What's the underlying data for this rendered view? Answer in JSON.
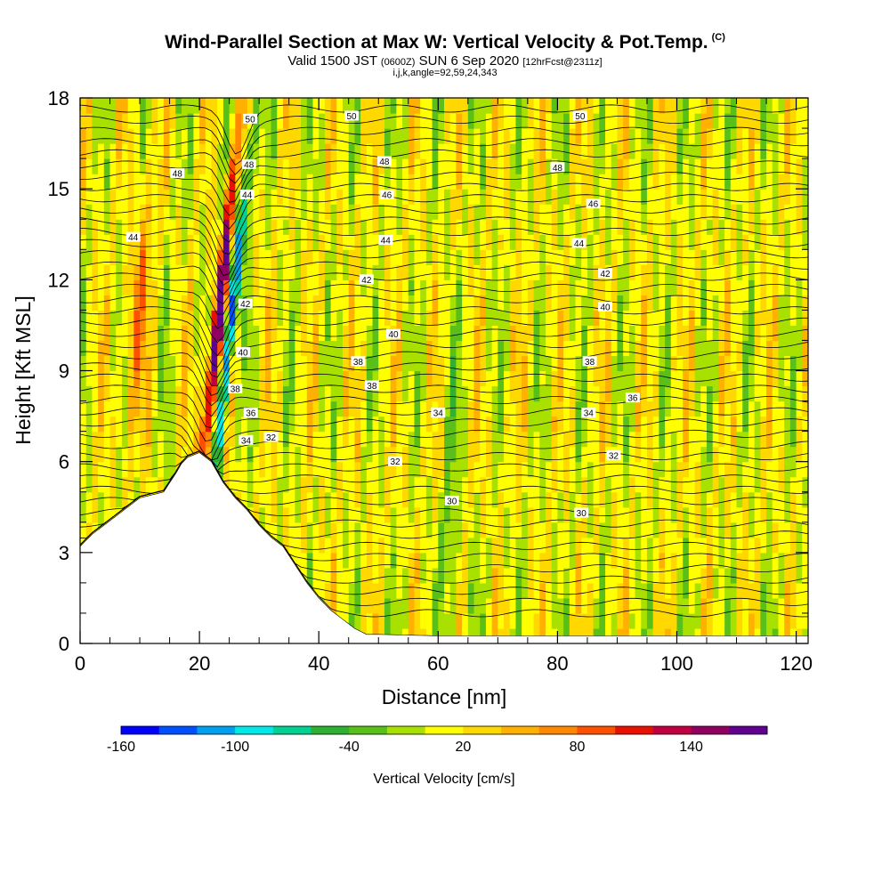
{
  "header": {
    "title": "Wind-Parallel Section at Max W: Vertical Velocity & Pot.Temp.",
    "copyright": "(C)",
    "valid_main": "Valid 1500 JST",
    "valid_utc": "(0600Z)",
    "valid_date": "SUN 6 Sep 2020",
    "forecast": "[12hrFcst@2311z]",
    "params": "i,j,k,angle=92,59,24,343"
  },
  "chart_data": {
    "type": "heatmap",
    "xlabel": "Distance [nm]",
    "ylabel": "Height [Kft MSL]",
    "xlim": [
      0,
      122
    ],
    "ylim": [
      0,
      18
    ],
    "x_ticks": [
      0,
      20,
      40,
      60,
      80,
      100,
      120
    ],
    "y_ticks": [
      0,
      3,
      6,
      9,
      12,
      15,
      18
    ],
    "colorbar": {
      "label": "Vertical Velocity [cm/s]",
      "tick_labels": [
        "-160",
        "-100",
        "-40",
        "20",
        "80",
        "140"
      ],
      "tick_values": [
        -160,
        -100,
        -40,
        20,
        80,
        140
      ],
      "range": [
        -160,
        180
      ],
      "colors": [
        "#0000ff",
        "#0050ff",
        "#00a0f0",
        "#00e8e8",
        "#00d090",
        "#30b030",
        "#58c018",
        "#a8e000",
        "#ffff00",
        "#ffd800",
        "#ffb000",
        "#ff8800",
        "#ff5000",
        "#e81000",
        "#c00040",
        "#900060",
        "#600090"
      ]
    },
    "theta_contour_labels": [
      {
        "x": 28.5,
        "y": 17.3,
        "value": "50"
      },
      {
        "x": 45.5,
        "y": 17.4,
        "value": "50"
      },
      {
        "x": 83.8,
        "y": 17.4,
        "value": "50"
      },
      {
        "x": 16.3,
        "y": 15.5,
        "value": "48"
      },
      {
        "x": 28.3,
        "y": 15.8,
        "value": "48"
      },
      {
        "x": 51.0,
        "y": 15.9,
        "value": "48"
      },
      {
        "x": 80.0,
        "y": 15.7,
        "value": "48"
      },
      {
        "x": 28.0,
        "y": 14.8,
        "value": "44"
      },
      {
        "x": 51.4,
        "y": 14.8,
        "value": "46"
      },
      {
        "x": 86.0,
        "y": 14.5,
        "value": "46"
      },
      {
        "x": 8.9,
        "y": 13.4,
        "value": "44"
      },
      {
        "x": 51.2,
        "y": 13.3,
        "value": "44"
      },
      {
        "x": 83.6,
        "y": 13.2,
        "value": "44"
      },
      {
        "x": 48.0,
        "y": 12.0,
        "value": "42"
      },
      {
        "x": 88.0,
        "y": 12.2,
        "value": "42"
      },
      {
        "x": 27.7,
        "y": 11.2,
        "value": "42"
      },
      {
        "x": 88.0,
        "y": 11.1,
        "value": "40"
      },
      {
        "x": 52.5,
        "y": 10.2,
        "value": "40"
      },
      {
        "x": 27.3,
        "y": 9.6,
        "value": "40"
      },
      {
        "x": 46.6,
        "y": 9.3,
        "value": "38"
      },
      {
        "x": 85.4,
        "y": 9.3,
        "value": "38"
      },
      {
        "x": 26.0,
        "y": 8.4,
        "value": "38"
      },
      {
        "x": 48.9,
        "y": 8.5,
        "value": "38"
      },
      {
        "x": 92.6,
        "y": 8.1,
        "value": "36"
      },
      {
        "x": 28.6,
        "y": 7.6,
        "value": "36"
      },
      {
        "x": 60.0,
        "y": 7.6,
        "value": "34"
      },
      {
        "x": 85.2,
        "y": 7.6,
        "value": "34"
      },
      {
        "x": 27.8,
        "y": 6.7,
        "value": "34"
      },
      {
        "x": 32.0,
        "y": 6.8,
        "value": "32"
      },
      {
        "x": 52.8,
        "y": 6.0,
        "value": "32"
      },
      {
        "x": 89.4,
        "y": 6.2,
        "value": "32"
      },
      {
        "x": 62.3,
        "y": 4.7,
        "value": "30"
      },
      {
        "x": 84.0,
        "y": 4.3,
        "value": "30"
      }
    ]
  }
}
